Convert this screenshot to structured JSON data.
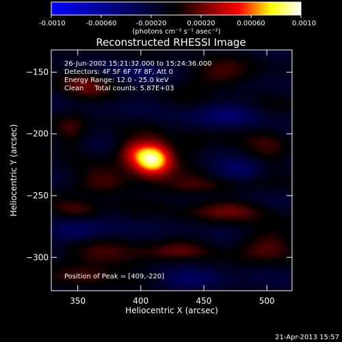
{
  "chart_data": {
    "type": "heatmap",
    "title": "Reconstructed RHESSI Image",
    "xlabel": "Heliocentric X (arcsec)",
    "ylabel": "Heliocentric Y (arcsec)",
    "xlim": [
      329,
      520
    ],
    "ylim": [
      -327,
      -132
    ],
    "x_ticks": [
      350,
      400,
      450,
      500
    ],
    "y_ticks": [
      -150,
      -200,
      -250,
      -300
    ],
    "colorbar": {
      "range": [
        -0.001,
        0.001
      ],
      "ticks": [
        "-0.0010",
        "-0.00060",
        "-0.00020",
        "0.00020",
        "0.00060",
        "0.0010"
      ],
      "tick_values": [
        -0.001,
        -0.0006,
        -0.0002,
        0.0002,
        0.0006,
        0.001
      ],
      "unit_label": "(photons cm⁻² s⁻¹ asec⁻²)",
      "colormap": [
        "#0000ff",
        "#000000",
        "#ff0000",
        "#ffff00",
        "#ffffff"
      ]
    },
    "annotations": [
      "26-Jun-2002 15:21:32.000 to 15:24:36.000",
      "Detectors: 4F 5F 6F 7F 8F, Att 0",
      "Energy Range: 12.0 - 25.0 keV",
      "Clean     Total counts: 5.87E+03"
    ],
    "peak_label": "Position of Peak = [409,-220]",
    "peak": {
      "x": 409,
      "y": -220,
      "value": 0.001
    },
    "sources": [
      {
        "x": 409,
        "y": -220,
        "sx": 11,
        "sy": 9,
        "amp": 0.0011
      },
      {
        "x": 392,
        "y": -214,
        "sx": 9,
        "sy": 7,
        "amp": 0.0003
      },
      {
        "x": 355,
        "y": -160,
        "sx": 14,
        "sy": 9,
        "amp": 0.00025
      },
      {
        "x": 460,
        "y": -153,
        "sx": 20,
        "sy": 8,
        "amp": 0.00025
      },
      {
        "x": 370,
        "y": -240,
        "sx": 18,
        "sy": 7,
        "amp": 0.00028
      },
      {
        "x": 440,
        "y": -243,
        "sx": 22,
        "sy": 6,
        "amp": 0.00025
      },
      {
        "x": 470,
        "y": -262,
        "sx": 25,
        "sy": 6,
        "amp": 0.00025
      },
      {
        "x": 350,
        "y": -262,
        "sx": 14,
        "sy": 5,
        "amp": 0.00022
      },
      {
        "x": 500,
        "y": -290,
        "sx": 18,
        "sy": 9,
        "amp": 0.00025
      },
      {
        "x": 370,
        "y": -300,
        "sx": 25,
        "sy": 8,
        "amp": 0.00025
      },
      {
        "x": 430,
        "y": -295,
        "sx": 18,
        "sy": 6,
        "amp": 0.0002
      },
      {
        "x": 360,
        "y": -315,
        "sx": 16,
        "sy": 6,
        "amp": 0.00018
      },
      {
        "x": 500,
        "y": -210,
        "sx": 12,
        "sy": 14,
        "amp": 0.0002
      },
      {
        "x": 345,
        "y": -200,
        "sx": 9,
        "sy": 12,
        "amp": 0.00018
      },
      {
        "x": 440,
        "y": -210,
        "sx": 9,
        "sy": 8,
        "amp": 0.00015
      },
      {
        "x": 480,
        "y": -230,
        "sx": 15,
        "sy": 6,
        "amp": -0.00025
      },
      {
        "x": 470,
        "y": -185,
        "sx": 18,
        "sy": 7,
        "amp": -0.00025
      },
      {
        "x": 350,
        "y": -280,
        "sx": 18,
        "sy": 6,
        "amp": -0.00025
      },
      {
        "x": 440,
        "y": -320,
        "sx": 20,
        "sy": 6,
        "amp": -0.00022
      },
      {
        "x": 400,
        "y": -150,
        "sx": 15,
        "sy": 6,
        "amp": -0.0002
      }
    ]
  },
  "footer": {
    "timestamp": "21-Apr-2013 15:57"
  }
}
